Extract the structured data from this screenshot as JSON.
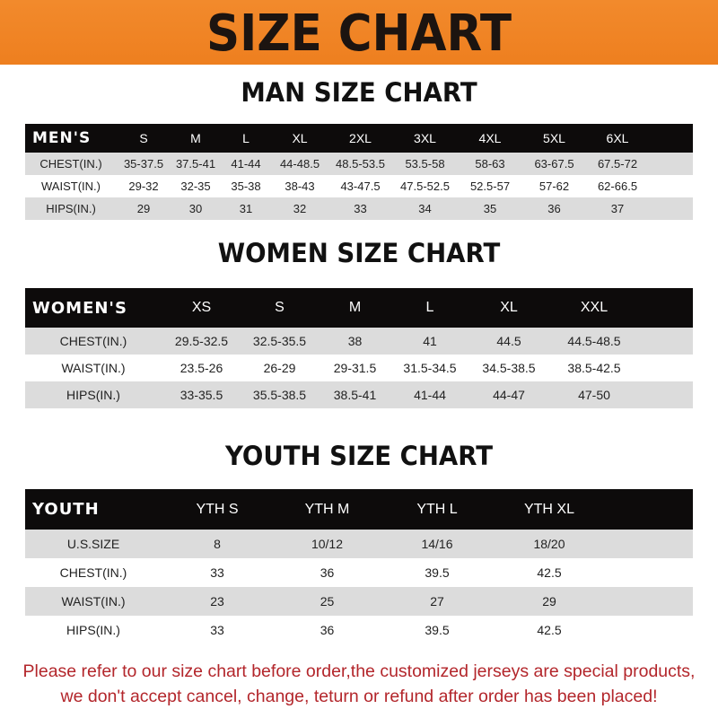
{
  "banner": {
    "title": "SIZE CHART",
    "color": "#ee7f1f"
  },
  "men": {
    "title": "MAN SIZE CHART",
    "header": "MEN'S",
    "sizes": [
      "S",
      "M",
      "L",
      "XL",
      "2XL",
      "3XL",
      "4XL",
      "5XL",
      "6XL"
    ],
    "rows": [
      {
        "label": "CHEST(IN.)",
        "values": [
          "35-37.5",
          "37.5-41",
          "41-44",
          "44-48.5",
          "48.5-53.5",
          "53.5-58",
          "58-63",
          "63-67.5",
          "67.5-72"
        ]
      },
      {
        "label": "WAIST(IN.)",
        "values": [
          "29-32",
          "32-35",
          "35-38",
          "38-43",
          "43-47.5",
          "47.5-52.5",
          "52.5-57",
          "57-62",
          "62-66.5"
        ]
      },
      {
        "label": "HIPS(IN.)",
        "values": [
          "29",
          "30",
          "31",
          "32",
          "33",
          "34",
          "35",
          "36",
          "37"
        ]
      }
    ]
  },
  "women": {
    "title": "WOMEN SIZE CHART",
    "header": "WOMEN'S",
    "sizes": [
      "XS",
      "S",
      "M",
      "L",
      "XL",
      "XXL"
    ],
    "rows": [
      {
        "label": "CHEST(IN.)",
        "values": [
          "29.5-32.5",
          "32.5-35.5",
          "38",
          "41",
          "44.5",
          "44.5-48.5"
        ]
      },
      {
        "label": "WAIST(IN.)",
        "values": [
          "23.5-26",
          "26-29",
          "29-31.5",
          "31.5-34.5",
          "34.5-38.5",
          "38.5-42.5"
        ]
      },
      {
        "label": "HIPS(IN.)",
        "values": [
          "33-35.5",
          "35.5-38.5",
          "38.5-41",
          "41-44",
          "44-47",
          "47-50"
        ]
      }
    ]
  },
  "youth": {
    "title": "YOUTH SIZE CHART",
    "header": "YOUTH",
    "sizes": [
      "YTH S",
      "YTH M",
      "YTH L",
      "YTH XL"
    ],
    "rows": [
      {
        "label": "U.S.SIZE",
        "values": [
          "8",
          "10/12",
          "14/16",
          "18/20"
        ]
      },
      {
        "label": "CHEST(IN.)",
        "values": [
          "33",
          "36",
          "39.5",
          "42.5"
        ]
      },
      {
        "label": "WAIST(IN.)",
        "values": [
          "23",
          "25",
          "27",
          "29"
        ]
      },
      {
        "label": "HIPS(IN.)",
        "values": [
          "33",
          "36",
          "39.5",
          "42.5"
        ]
      }
    ]
  },
  "note": {
    "line1": "Please refer to our size chart before order,the customized jerseys are special products,",
    "line2": "we don't accept cancel, change, teturn or refund after order has been placed!",
    "color": "#b3262b"
  }
}
